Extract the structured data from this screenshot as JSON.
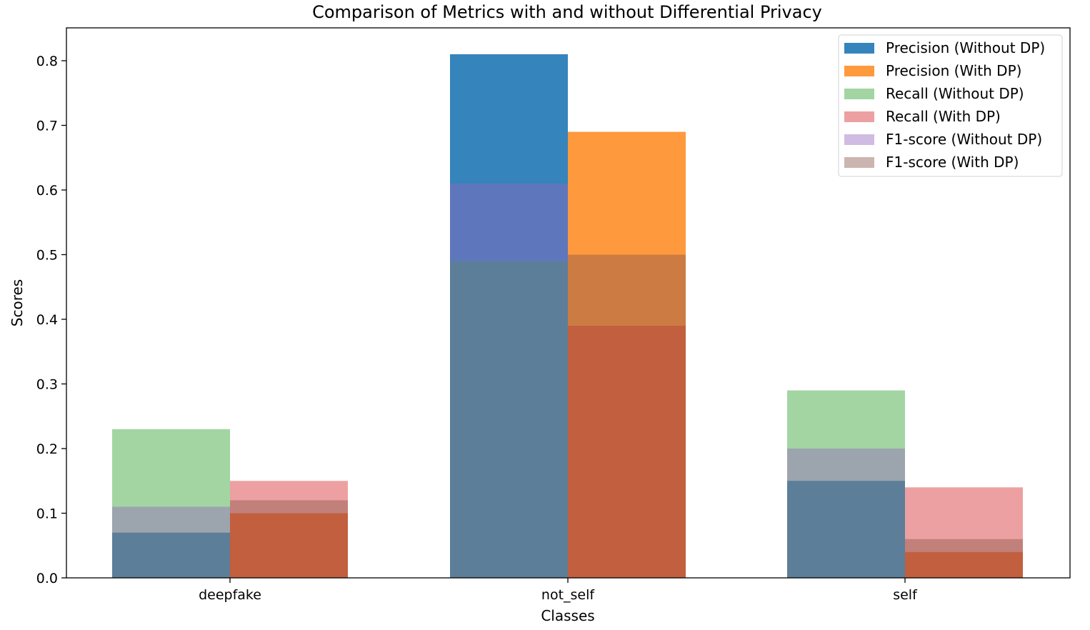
{
  "chart_data": {
    "type": "bar",
    "title": "Comparison of Metrics with and without Differential Privacy",
    "xlabel": "Classes",
    "ylabel": "Scores",
    "categories": [
      "deepfake",
      "not_self",
      "self"
    ],
    "ylim": [
      0,
      0.84
    ],
    "yticks": [
      0.0,
      0.1,
      0.2,
      0.3,
      0.4,
      0.5,
      0.6,
      0.7,
      0.8
    ],
    "grid": false,
    "legend_position": "top-right",
    "overlay": "bars of each metric drawn on top of one another with transparency",
    "series": [
      {
        "name": "Precision (Without DP)",
        "group": "without_dp",
        "color": "#1f77b4",
        "opacity": 0.9,
        "values": [
          0.07,
          0.81,
          0.15
        ]
      },
      {
        "name": "Precision (With DP)",
        "group": "with_dp",
        "color": "#ff7f0e",
        "opacity": 0.8,
        "values": [
          0.1,
          0.69,
          0.04
        ]
      },
      {
        "name": "Recall (Without DP)",
        "group": "without_dp",
        "color": "#2ca02c",
        "opacity": 0.44,
        "values": [
          0.23,
          0.49,
          0.29
        ]
      },
      {
        "name": "Recall (With DP)",
        "group": "with_dp",
        "color": "#d62728",
        "opacity": 0.44,
        "values": [
          0.15,
          0.39,
          0.14
        ]
      },
      {
        "name": "F1-score (Without DP)",
        "group": "without_dp",
        "color": "#9467bd",
        "opacity": 0.44,
        "values": [
          0.11,
          0.61,
          0.2
        ]
      },
      {
        "name": "F1-score (With DP)",
        "group": "with_dp",
        "color": "#8c564b",
        "opacity": 0.44,
        "values": [
          0.12,
          0.5,
          0.06
        ]
      }
    ]
  }
}
